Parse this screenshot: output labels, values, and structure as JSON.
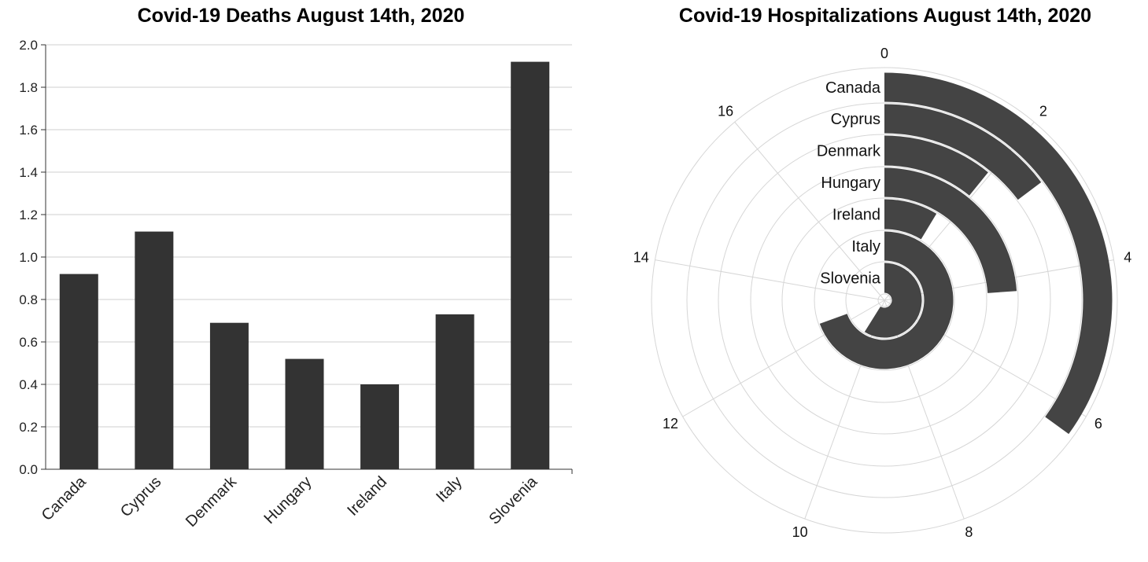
{
  "chart_data": [
    {
      "type": "bar",
      "title": "Covid-19 Deaths August 14th, 2020",
      "categories": [
        "Canada",
        "Cyprus",
        "Denmark",
        "Hungary",
        "Ireland",
        "Italy",
        "Slovenia"
      ],
      "values": [
        0.92,
        1.12,
        0.69,
        0.52,
        0.4,
        0.73,
        1.92
      ],
      "ylim": [
        0,
        2.0
      ],
      "yticks": [
        "0.0",
        "0.2",
        "0.4",
        "0.6",
        "0.8",
        "1.0",
        "1.2",
        "1.4",
        "1.6",
        "1.8",
        "2.0"
      ],
      "grid": true,
      "bar_color": "#333333"
    },
    {
      "type": "radial-bar",
      "title": "Covid-19 Hospitalizations August 14th, 2020",
      "categories": [
        "Canada",
        "Cyprus",
        "Denmark",
        "Hungary",
        "Ireland",
        "Italy",
        "Slovenia"
      ],
      "values": [
        6.3,
        2.65,
        1.95,
        4.3,
        1.55,
        12.5,
        10.6
      ],
      "angular_max": 18,
      "angular_ticks": [
        "0",
        "2",
        "4",
        "6",
        "8",
        "10",
        "12",
        "14",
        "16"
      ],
      "grid": true,
      "bar_color": "#444444"
    }
  ]
}
